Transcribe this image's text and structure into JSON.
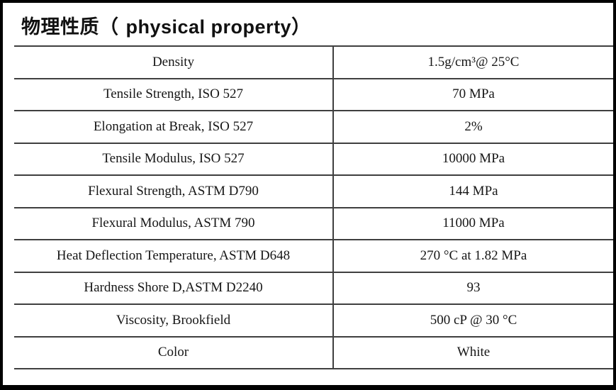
{
  "title": {
    "zh": "物理性质（",
    "en": "physical property",
    "close": "）"
  },
  "table": {
    "rows": [
      {
        "property": "Density",
        "value": "1.5g/cm³@ 25°C"
      },
      {
        "property": "Tensile Strength, ISO 527",
        "value": "70 MPa"
      },
      {
        "property": "Elongation at Break, ISO 527",
        "value": "2%"
      },
      {
        "property": "Tensile Modulus, ISO 527",
        "value": "10000 MPa"
      },
      {
        "property": "Flexural Strength, ASTM D790",
        "value": "144 MPa"
      },
      {
        "property": "Flexural Modulus, ASTM 790",
        "value": "11000 MPa"
      },
      {
        "property": "Heat Deflection Temperature, ASTM D648",
        "value": "270 °C at 1.82 MPa"
      },
      {
        "property": "Hardness Shore D,ASTM D2240",
        "value": "93"
      },
      {
        "property": "Viscosity, Brookfield",
        "value": "500 cP @ 30 °C"
      },
      {
        "property": "Color",
        "value": "White"
      }
    ]
  },
  "colors": {
    "border": "#3f3f3f",
    "text": "#161616",
    "frame": "#000000",
    "background": "#ffffff"
  }
}
